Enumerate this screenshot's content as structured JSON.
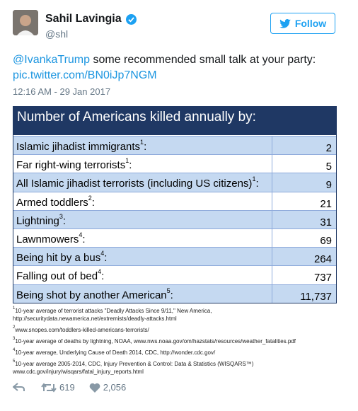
{
  "header": {
    "name": "Sahil Lavingia",
    "handle": "@shl",
    "follow": "Follow"
  },
  "tweet": {
    "mention": "@IvankaTrump",
    "text": " some recommended small talk at your party:",
    "link": "pic.twitter.com/BN0iJp7NGM",
    "time": "12:16 AM - 29 Jan 2017"
  },
  "table": {
    "title": "Number of Americans killed annually by:",
    "rows": [
      {
        "label": "Islamic jihadist immigrants",
        "note": "1",
        "colon": ":",
        "value": "2"
      },
      {
        "label": "Far right-wing terrorists",
        "note": "1",
        "colon": ":",
        "value": "5"
      },
      {
        "label": "All Islamic jihadist terrorists (including US citizens)",
        "note": "1",
        "colon": ":",
        "value": "9"
      },
      {
        "label": "Armed toddlers",
        "note": "2",
        "colon": ":",
        "value": "21"
      },
      {
        "label": "Lightning",
        "note": "3",
        "colon": ":",
        "value": "31"
      },
      {
        "label": "Lawnmowers",
        "note": "4",
        "colon": ":",
        "value": "69"
      },
      {
        "label": "Being hit by a bus",
        "note": "4",
        "colon": ":",
        "value": "264"
      },
      {
        "label": "Falling out of bed",
        "note": "4",
        "colon": ":",
        "value": "737"
      },
      {
        "label": "Being shot by another American",
        "note": "5",
        "colon": ":",
        "value": "11,737"
      }
    ],
    "footnotes": [
      {
        "mark": "1",
        "text": "10-year average of terrorist attacks \"Deadly Attacks Since 9/11,\" New America, http://securitydata.newamerica.net/extremists/deadly-attacks.html"
      },
      {
        "mark": "2",
        "text": "www.snopes.com/toddlers-killed-americans-terrorists/"
      },
      {
        "mark": "3",
        "text": "10-year average of deaths by lightning, NOAA, www.nws.noaa.gov/om/hazstats/resources/weather_fatalities.pdf"
      },
      {
        "mark": "4",
        "text": "10-year average, Underlying Cause of Death 2014, CDC, http://wonder.cdc.gov/"
      },
      {
        "mark": "5",
        "text": "10-year average 2005-2014, CDC, Injury Prevention & Control: Data & Statistics (WISQARS™) www.cdc.gov/injury/wisqars/fatal_injury_reports.html"
      }
    ]
  },
  "actions": {
    "retweets": "619",
    "likes": "2,056"
  }
}
